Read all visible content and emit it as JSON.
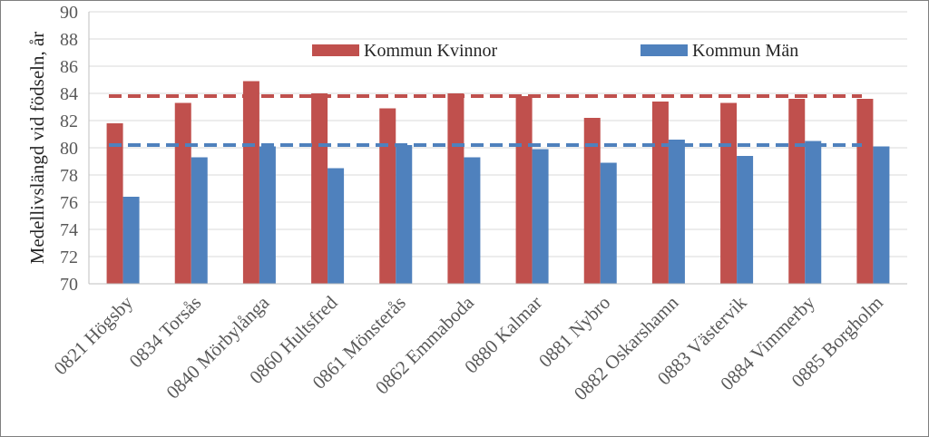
{
  "chart_data": {
    "type": "bar",
    "title": "",
    "xlabel": "",
    "ylabel": "Medellivslängd vid födseln, år",
    "ylim": [
      70,
      90
    ],
    "yticks": [
      70,
      72,
      74,
      76,
      78,
      80,
      82,
      84,
      86,
      88,
      90
    ],
    "grid": true,
    "legend_position": "top",
    "categories": [
      "0821 Högsby",
      "0834 Torsås",
      "0840 Mörbylånga",
      "0860 Hultsfred",
      "0861 Mönsterås",
      "0862 Emmaboda",
      "0880 Kalmar",
      "0881 Nybro",
      "0882 Oskarshamn",
      "0883 Västervik",
      "0884 Vimmerby",
      "0885 Borgholm"
    ],
    "series": [
      {
        "name": "Kommun Kvinnor",
        "color": "#C0504D",
        "values": [
          81.8,
          83.3,
          84.9,
          84.0,
          82.9,
          84.0,
          83.8,
          82.2,
          83.4,
          83.3,
          83.6,
          83.6
        ]
      },
      {
        "name": "Kommun Män",
        "color": "#4F81BD",
        "values": [
          76.4,
          79.3,
          80.1,
          78.5,
          80.2,
          79.3,
          79.9,
          78.9,
          80.6,
          79.4,
          80.5,
          80.1
        ]
      }
    ],
    "reference_lines": [
      {
        "value": 83.8,
        "color": "#C0504D",
        "style": "dashed"
      },
      {
        "value": 80.2,
        "color": "#4F81BD",
        "style": "dashed"
      }
    ]
  }
}
